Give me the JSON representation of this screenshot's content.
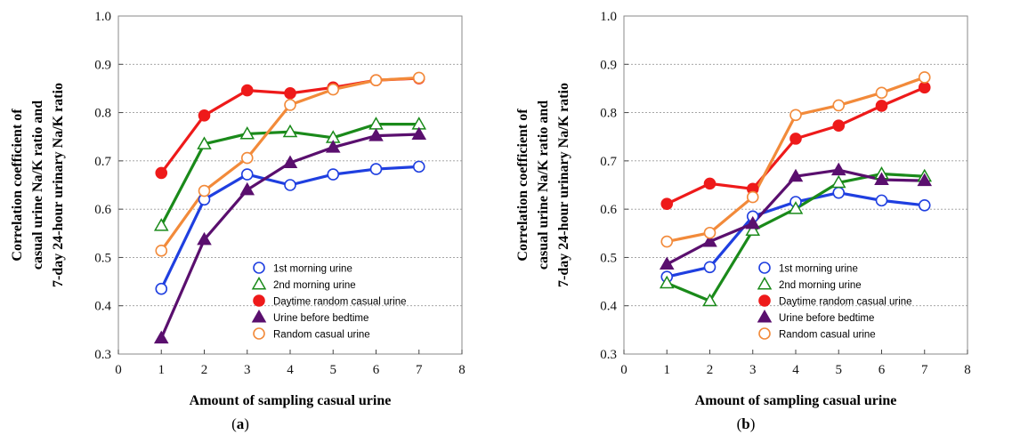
{
  "series_styles": [
    {
      "color": "#1f3fe0",
      "marker": "open-circle"
    },
    {
      "color": "#1a8a1a",
      "marker": "open-triangle"
    },
    {
      "color": "#ee1a1a",
      "marker": "filled-circle"
    },
    {
      "color": "#5a0f6e",
      "marker": "filled-triangle"
    },
    {
      "color": "#f28a3a",
      "marker": "open-circle"
    }
  ],
  "chart_data": [
    {
      "type": "line",
      "panel_label": {
        "open": "(",
        "letter": "a",
        "close": ")"
      },
      "xlabel": "Amount of sampling casual urine",
      "ylabel_lines": [
        "Correlation coefficient of",
        "casual urine Na/K ratio and",
        "7-day 24-hour urinary Na/K ratio"
      ],
      "xlim": [
        0,
        8
      ],
      "ylim": [
        0.3,
        1.0
      ],
      "xticks": [
        "0",
        "1",
        "2",
        "3",
        "4",
        "5",
        "6",
        "7",
        "8"
      ],
      "yticks": [
        "0.3",
        "0.4",
        "0.5",
        "0.6",
        "0.7",
        "0.8",
        "0.9",
        "1.0"
      ],
      "grid": "horizontal dashed",
      "legend_position": "lower-right",
      "x": [
        1,
        2,
        3,
        4,
        5,
        6,
        7
      ],
      "series": [
        {
          "name": "1st morning urine",
          "values": [
            0.435,
            0.62,
            0.672,
            0.65,
            0.672,
            0.683,
            0.688
          ]
        },
        {
          "name": "2nd morning urine",
          "values": [
            0.566,
            0.735,
            0.756,
            0.76,
            0.748,
            0.776,
            0.776
          ]
        },
        {
          "name": "Daytime random casual urine",
          "values": [
            0.675,
            0.794,
            0.846,
            0.84,
            0.852,
            0.867,
            0.871
          ]
        },
        {
          "name": "Urine before bedtime",
          "values": [
            0.333,
            0.537,
            0.64,
            0.696,
            0.728,
            0.752,
            0.755
          ]
        },
        {
          "name": "Random casual urine",
          "values": [
            0.514,
            0.638,
            0.706,
            0.816,
            0.848,
            0.867,
            0.872
          ]
        }
      ]
    },
    {
      "type": "line",
      "panel_label": {
        "open": "(",
        "letter": "b",
        "close": ")"
      },
      "xlabel": "Amount of sampling casual urine",
      "ylabel_lines": [
        "Correlation coefficient of",
        "casual urine Na/K ratio and",
        "7-day 24-hour urinary Na/K ratio"
      ],
      "xlim": [
        0,
        8
      ],
      "ylim": [
        0.3,
        1.0
      ],
      "xticks": [
        "0",
        "1",
        "2",
        "3",
        "4",
        "5",
        "6",
        "7",
        "8"
      ],
      "yticks": [
        "0.3",
        "0.4",
        "0.5",
        "0.6",
        "0.7",
        "0.8",
        "0.9",
        "1.0"
      ],
      "grid": "horizontal dashed",
      "legend_position": "lower-right",
      "x": [
        1,
        2,
        3,
        4,
        5,
        6,
        7
      ],
      "series": [
        {
          "name": "1st morning urine",
          "values": [
            0.46,
            0.48,
            0.585,
            0.615,
            0.634,
            0.618,
            0.608
          ]
        },
        {
          "name": "2nd morning urine",
          "values": [
            0.447,
            0.41,
            0.556,
            0.601,
            0.655,
            0.673,
            0.668
          ]
        },
        {
          "name": "Daytime random casual urine",
          "values": [
            0.611,
            0.653,
            0.642,
            0.746,
            0.773,
            0.814,
            0.852
          ]
        },
        {
          "name": "Urine before bedtime",
          "values": [
            0.486,
            0.533,
            0.57,
            0.668,
            0.681,
            0.661,
            0.659
          ]
        },
        {
          "name": "Random casual urine",
          "values": [
            0.533,
            0.551,
            0.625,
            0.795,
            0.815,
            0.841,
            0.873
          ]
        }
      ]
    }
  ]
}
